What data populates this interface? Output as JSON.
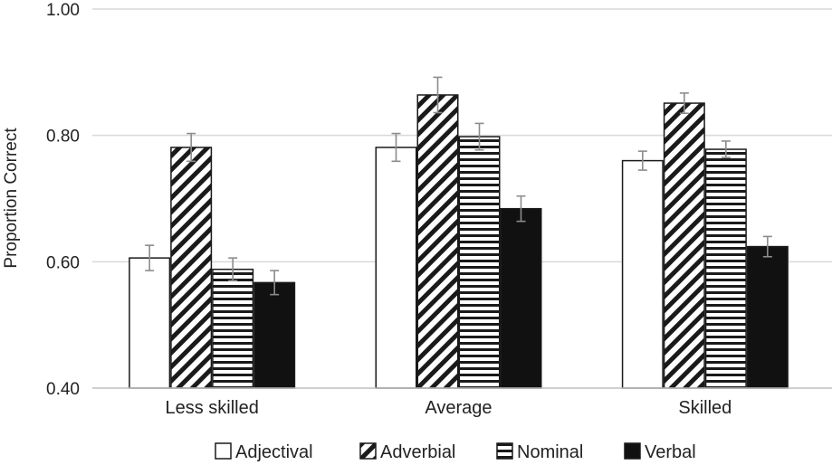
{
  "chart_data": {
    "type": "bar",
    "title": "",
    "xlabel": "",
    "ylabel": "Proportion Correct",
    "ylim": [
      0.4,
      1.0
    ],
    "yticks": [
      "0.40",
      "0.60",
      "0.80",
      "1.00"
    ],
    "categories": [
      "Less skilled",
      "Average",
      "Skilled"
    ],
    "grid": true,
    "legend_position": "bottom",
    "series": [
      {
        "name": "Adjectival",
        "pattern": "empty",
        "values": [
          0.606,
          0.781,
          0.76
        ],
        "errors": [
          0.02,
          0.022,
          0.015
        ]
      },
      {
        "name": "Adverbial",
        "pattern": "diagonal",
        "values": [
          0.781,
          0.864,
          0.851
        ],
        "errors": [
          0.022,
          0.028,
          0.016
        ]
      },
      {
        "name": "Nominal",
        "pattern": "horizontal",
        "values": [
          0.588,
          0.798,
          0.778
        ],
        "errors": [
          0.018,
          0.021,
          0.013
        ]
      },
      {
        "name": "Verbal",
        "pattern": "solid",
        "values": [
          0.567,
          0.684,
          0.624
        ],
        "errors": [
          0.019,
          0.02,
          0.016
        ]
      }
    ]
  }
}
